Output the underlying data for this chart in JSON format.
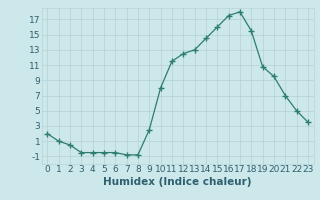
{
  "xlabel": "Humidex (Indice chaleur)",
  "x": [
    0,
    1,
    2,
    3,
    4,
    5,
    6,
    7,
    8,
    9,
    10,
    11,
    12,
    13,
    14,
    15,
    16,
    17,
    18,
    19,
    20,
    21,
    22,
    23
  ],
  "y": [
    2,
    1,
    0.5,
    -0.5,
    -0.5,
    -0.5,
    -0.5,
    -0.8,
    -0.8,
    2.5,
    8,
    11.5,
    12.5,
    13,
    14.5,
    16,
    17.5,
    18,
    15.5,
    10.8,
    9.5,
    7,
    5,
    3.5
  ],
  "line_color": "#2e7d6e",
  "marker": "+",
  "marker_size": 4,
  "marker_color": "#2e7d6e",
  "bg_color": "#cce8ea",
  "grid_color": "#b8d4d6",
  "ylim": [
    -2,
    18.5
  ],
  "xlim": [
    -0.5,
    23.5
  ],
  "yticks": [
    -1,
    1,
    3,
    5,
    7,
    9,
    11,
    13,
    15,
    17
  ],
  "xticks": [
    0,
    1,
    2,
    3,
    4,
    5,
    6,
    7,
    8,
    9,
    10,
    11,
    12,
    13,
    14,
    15,
    16,
    17,
    18,
    19,
    20,
    21,
    22,
    23
  ],
  "font_color": "#2e6070",
  "tick_fontsize": 6.5,
  "xlabel_fontsize": 7.5
}
